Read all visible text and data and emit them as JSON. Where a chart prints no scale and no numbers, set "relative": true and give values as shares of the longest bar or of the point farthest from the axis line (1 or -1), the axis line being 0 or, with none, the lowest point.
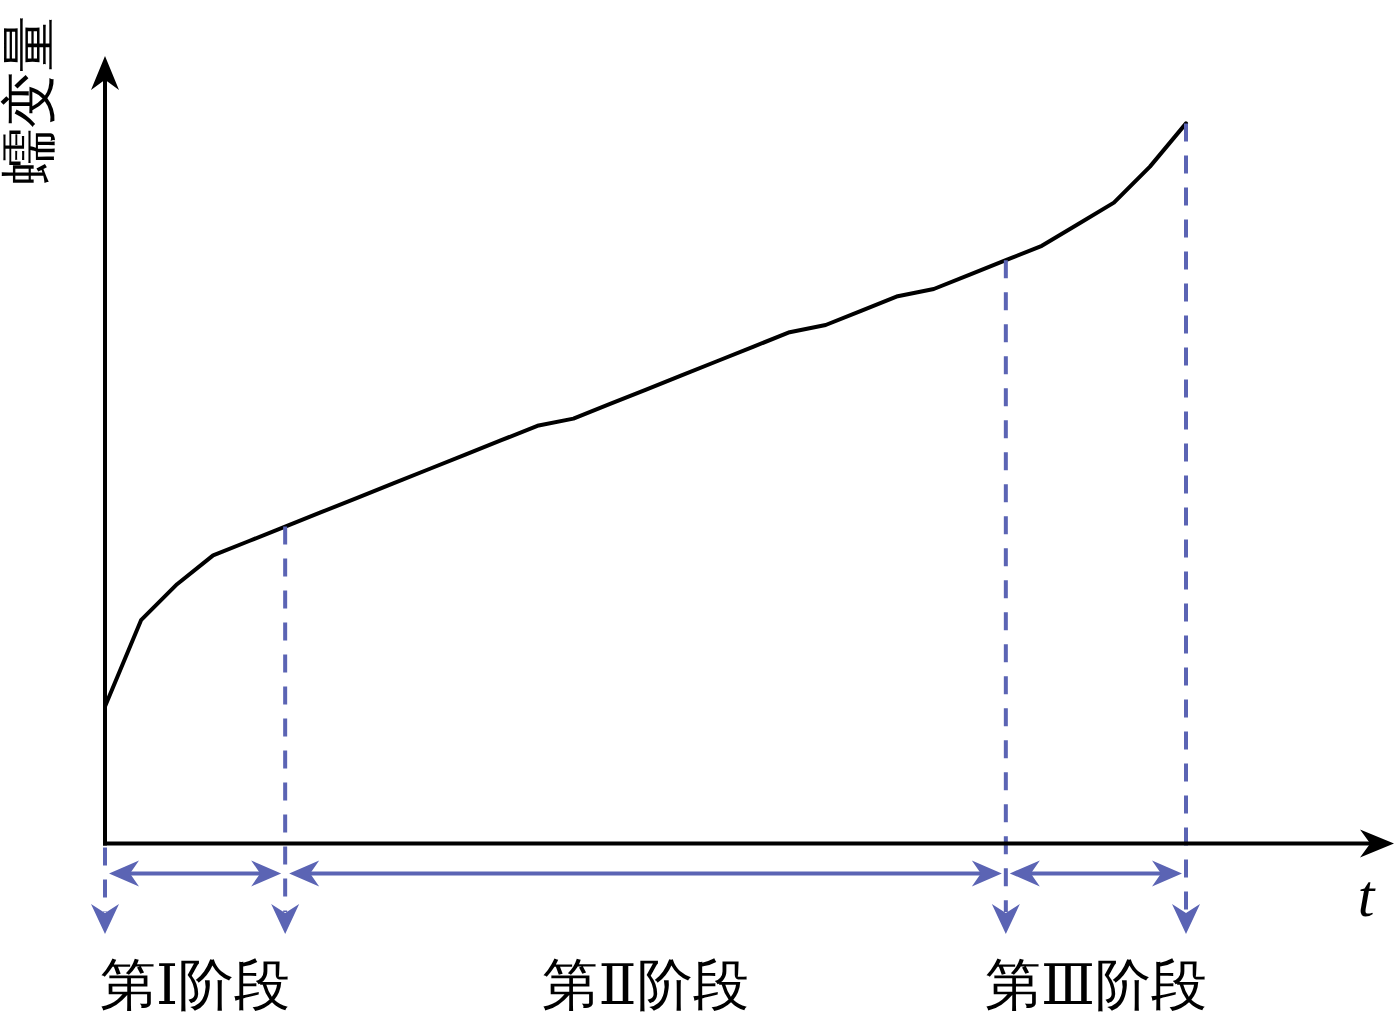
{
  "chart_data": {
    "type": "line",
    "ylabel": "蠕变量",
    "xlabel": "t",
    "relative": true,
    "categories": [
      null,
      null,
      null,
      null,
      null,
      null,
      null,
      null,
      null,
      null,
      null,
      null,
      null,
      null,
      null,
      null,
      null,
      null,
      null,
      null,
      null,
      null,
      null,
      null,
      null,
      null,
      null,
      null,
      null,
      null,
      null
    ],
    "series": [
      {
        "color": "#000000",
        "values": [
          0.19,
          0.31,
          0.36,
          0.4,
          0.42,
          0.44,
          0.46,
          0.48,
          0.5,
          0.52,
          0.54,
          0.56,
          0.58,
          0.59,
          0.61,
          0.63,
          0.65,
          0.67,
          0.69,
          0.71,
          0.72,
          0.74,
          0.76,
          0.77,
          0.79,
          0.81,
          0.83,
          0.86,
          0.89,
          0.94,
          1
        ]
      }
    ],
    "annotations": [
      "第Ⅰ阶段",
      "第Ⅱ阶段",
      "第Ⅲ阶段"
    ]
  }
}
